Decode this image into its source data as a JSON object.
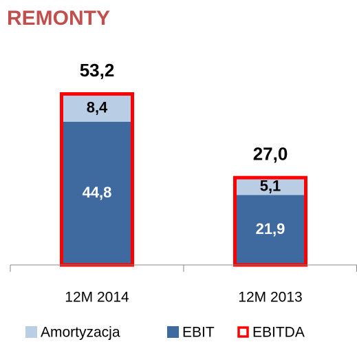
{
  "chart_data": {
    "type": "stacked_bar",
    "title": "REMONTY",
    "categories": [
      "12M 2014",
      "12M 2013"
    ],
    "series": [
      {
        "name": "Amortyzacja",
        "color": "#b9cde5",
        "values": [
          8.4,
          5.1
        ],
        "value_labels": [
          "8,4",
          "5,1"
        ]
      },
      {
        "name": "EBIT",
        "color": "#3f6aa0",
        "values": [
          44.8,
          21.9
        ],
        "value_labels": [
          "44,8",
          "21,9"
        ]
      },
      {
        "name": "EBITDA",
        "color": "#ff0000",
        "style": "outline",
        "values": [
          53.2,
          27.0
        ],
        "value_labels": [
          "53,2",
          "27,0"
        ]
      }
    ]
  }
}
